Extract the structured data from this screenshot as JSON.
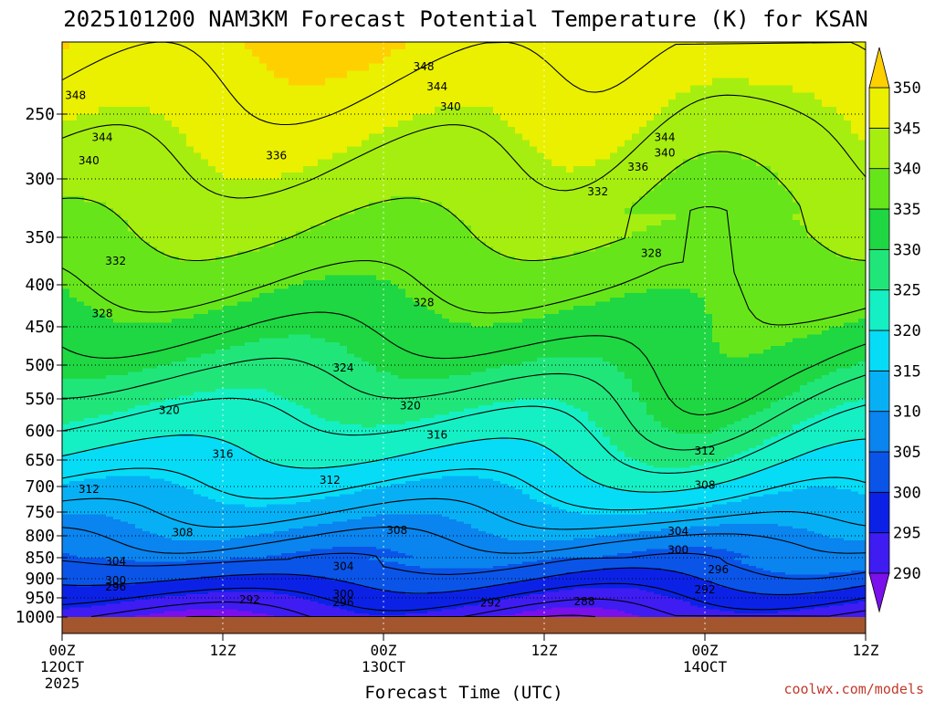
{
  "chart_data": {
    "type": "heatmap",
    "title": "2025101200 NAM3KM Forecast Potential Temperature (K) for KSAN",
    "xlabel": "Forecast Time (UTC)",
    "ylabel": "",
    "credit": "coolwx.com/models",
    "x_hours": [
      0,
      6,
      12,
      18,
      24,
      30,
      36,
      42,
      48,
      54,
      60
    ],
    "x_ticks": [
      {
        "hour": 0,
        "line1": "00Z",
        "line2": "12OCT",
        "line3": "2025"
      },
      {
        "hour": 12,
        "line1": "12Z",
        "line2": "",
        "line3": ""
      },
      {
        "hour": 24,
        "line1": "00Z",
        "line2": "13OCT",
        "line3": ""
      },
      {
        "hour": 36,
        "line1": "12Z",
        "line2": "",
        "line3": ""
      },
      {
        "hour": 48,
        "line1": "00Z",
        "line2": "14OCT",
        "line3": ""
      },
      {
        "hour": 60,
        "line1": "12Z",
        "line2": "",
        "line3": ""
      }
    ],
    "y_ticks": [
      250,
      300,
      350,
      400,
      450,
      500,
      550,
      600,
      650,
      700,
      750,
      800,
      850,
      900,
      950,
      1000
    ],
    "y_range": [
      200,
      1000
    ],
    "contour_levels": [
      288,
      292,
      296,
      300,
      304,
      308,
      312,
      316,
      320,
      324,
      328,
      332,
      336,
      340,
      344,
      348
    ],
    "contour_labels": [
      {
        "value": "348",
        "hour": 1,
        "p": 237
      },
      {
        "value": "348",
        "hour": 27,
        "p": 217
      },
      {
        "value": "344",
        "hour": 3,
        "p": 268
      },
      {
        "value": "344",
        "hour": 28,
        "p": 231
      },
      {
        "value": "344",
        "hour": 45,
        "p": 268
      },
      {
        "value": "340",
        "hour": 2,
        "p": 286
      },
      {
        "value": "340",
        "hour": 29,
        "p": 245
      },
      {
        "value": "340",
        "hour": 45,
        "p": 280
      },
      {
        "value": "336",
        "hour": 16,
        "p": 282
      },
      {
        "value": "336",
        "hour": 43,
        "p": 291
      },
      {
        "value": "332",
        "hour": 4,
        "p": 375
      },
      {
        "value": "332",
        "hour": 40,
        "p": 311
      },
      {
        "value": "328",
        "hour": 3,
        "p": 434
      },
      {
        "value": "328",
        "hour": 27,
        "p": 421
      },
      {
        "value": "328",
        "hour": 44,
        "p": 367
      },
      {
        "value": "324",
        "hour": 21,
        "p": 504
      },
      {
        "value": "320",
        "hour": 8,
        "p": 568
      },
      {
        "value": "320",
        "hour": 26,
        "p": 561
      },
      {
        "value": "316",
        "hour": 12,
        "p": 640
      },
      {
        "value": "316",
        "hour": 28,
        "p": 607
      },
      {
        "value": "312",
        "hour": 2,
        "p": 705
      },
      {
        "value": "312",
        "hour": 20,
        "p": 688
      },
      {
        "value": "312",
        "hour": 48,
        "p": 634
      },
      {
        "value": "308",
        "hour": 9,
        "p": 793
      },
      {
        "value": "308",
        "hour": 25,
        "p": 788
      },
      {
        "value": "308",
        "hour": 48,
        "p": 697
      },
      {
        "value": "304",
        "hour": 4,
        "p": 859
      },
      {
        "value": "304",
        "hour": 21,
        "p": 871
      },
      {
        "value": "304",
        "hour": 46,
        "p": 790
      },
      {
        "value": "300",
        "hour": 4,
        "p": 905
      },
      {
        "value": "300",
        "hour": 21,
        "p": 940
      },
      {
        "value": "300",
        "hour": 46,
        "p": 832
      },
      {
        "value": "296",
        "hour": 4,
        "p": 922
      },
      {
        "value": "296",
        "hour": 21,
        "p": 962
      },
      {
        "value": "296",
        "hour": 49,
        "p": 878
      },
      {
        "value": "292",
        "hour": 14,
        "p": 955
      },
      {
        "value": "292",
        "hour": 32,
        "p": 963
      },
      {
        "value": "292",
        "hour": 48,
        "p": 928
      },
      {
        "value": "288",
        "hour": 39,
        "p": 960
      }
    ],
    "colorbar": {
      "levels": [
        290,
        295,
        300,
        305,
        310,
        315,
        320,
        325,
        330,
        335,
        340,
        345,
        350
      ],
      "colors": [
        "#7a10ea",
        "#3f1cf2",
        "#0b22e6",
        "#0a55e8",
        "#0a84ee",
        "#07b0f4",
        "#06dcf6",
        "#14f0c4",
        "#20e67a",
        "#1ed742",
        "#66e61a",
        "#a6ee10",
        "#eaf000",
        "#ffd000"
      ]
    },
    "ground_color": "#a3562e"
  }
}
